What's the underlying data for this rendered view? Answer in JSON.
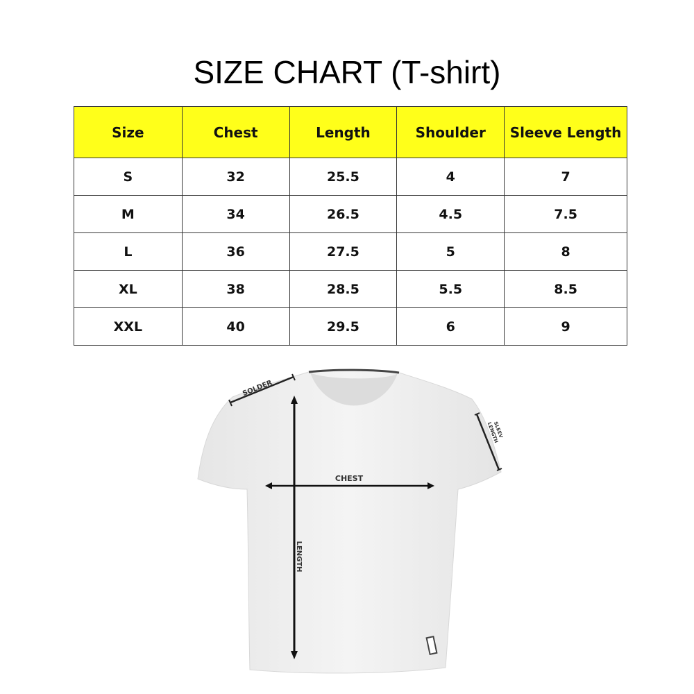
{
  "title": "SIZE CHART (T-shirt)",
  "table": {
    "headers": [
      "Size",
      "Chest",
      "Length",
      "Shoulder",
      "Sleeve Length"
    ],
    "rows": [
      [
        "S",
        "32",
        "25.5",
        "4",
        "7"
      ],
      [
        "M",
        "34",
        "26.5",
        "4.5",
        "7.5"
      ],
      [
        "L",
        "36",
        "27.5",
        "5",
        "8"
      ],
      [
        "XL",
        "38",
        "28.5",
        "5.5",
        "8.5"
      ],
      [
        "XXL",
        "40",
        "29.5",
        "6",
        "9"
      ]
    ],
    "header_color": "#ffff1a"
  },
  "diagram": {
    "solder": "SOLDER",
    "chest": "CHEST",
    "length": "LENGTH",
    "sleev_1": "SLEEV",
    "sleev_2": "LENGTH"
  }
}
